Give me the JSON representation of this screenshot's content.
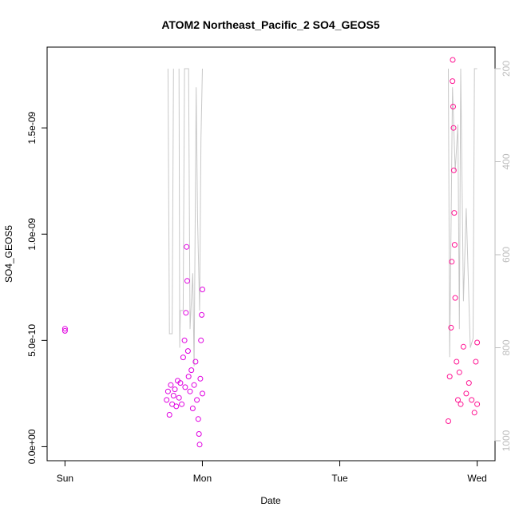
{
  "chart_data": {
    "type": "scatter",
    "title": "ATOM2 Northeast_Pacific_2 SO4_GEOS5",
    "xlabel": "Date",
    "ylabel": "SO4_GEOS5",
    "x_ticks": [
      "Sun",
      "Mon",
      "Tue",
      "Wed"
    ],
    "xlim_days": [
      -0.13,
      3.13
    ],
    "y_ticks": [
      "0.0e+00",
      "5.0e-10",
      "1.0e-09",
      "1.5e-09"
    ],
    "y_tick_values": [
      0,
      5e-10,
      1e-09,
      1.5e-09
    ],
    "ylim": [
      -6.6e-11,
      1.88e-09
    ],
    "right_axis": {
      "ticks": [
        "200",
        "400",
        "600",
        "800",
        "1000"
      ],
      "tick_values": [
        200,
        400,
        600,
        800,
        1000
      ],
      "reversed": true,
      "color": "#bdbdbd"
    },
    "series": [
      {
        "marker": "open-circle",
        "colors": [
          "#e000e0",
          "#ff1493"
        ],
        "points": [
          [
            0.0,
            5.45e-10
          ],
          [
            0.0,
            5.55e-10
          ],
          [
            0.74,
            2.2e-10
          ],
          [
            0.75,
            2.6e-10
          ],
          [
            0.76,
            1.5e-10
          ],
          [
            0.77,
            2.9e-10
          ],
          [
            0.78,
            2e-10
          ],
          [
            0.79,
            2.4e-10
          ],
          [
            0.8,
            2.7e-10
          ],
          [
            0.81,
            1.9e-10
          ],
          [
            0.82,
            3.1e-10
          ],
          [
            0.83,
            2.3e-10
          ],
          [
            0.84,
            3e-10
          ],
          [
            0.85,
            2e-10
          ],
          [
            0.86,
            4.2e-10
          ],
          [
            0.87,
            5e-10
          ],
          [
            0.875,
            2.8e-10
          ],
          [
            0.88,
            6.3e-10
          ],
          [
            0.885,
            9.4e-10
          ],
          [
            0.89,
            7.8e-10
          ],
          [
            0.895,
            4.5e-10
          ],
          [
            0.9,
            3.3e-10
          ],
          [
            0.91,
            2.6e-10
          ],
          [
            0.92,
            3.6e-10
          ],
          [
            0.93,
            1.8e-10
          ],
          [
            0.94,
            2.9e-10
          ],
          [
            0.95,
            4e-10
          ],
          [
            0.96,
            2.2e-10
          ],
          [
            0.97,
            1.3e-10
          ],
          [
            0.975,
            6e-11
          ],
          [
            0.98,
            1e-11
          ],
          [
            0.985,
            3.2e-10
          ],
          [
            0.99,
            5e-10
          ],
          [
            0.995,
            6.2e-10
          ],
          [
            1.0,
            7.4e-10
          ],
          [
            1.0,
            2.5e-10
          ],
          [
            2.79,
            1.2e-10
          ],
          [
            2.8,
            3.3e-10
          ],
          [
            2.81,
            5.6e-10
          ],
          [
            2.815,
            8.7e-10
          ],
          [
            2.82,
            1.72e-09
          ],
          [
            2.822,
            1.82e-09
          ],
          [
            2.825,
            1.6e-09
          ],
          [
            2.828,
            1.5e-09
          ],
          [
            2.83,
            1.3e-09
          ],
          [
            2.833,
            1.1e-09
          ],
          [
            2.836,
            9.5e-10
          ],
          [
            2.84,
            7e-10
          ],
          [
            2.85,
            4e-10
          ],
          [
            2.86,
            2.2e-10
          ],
          [
            2.87,
            3.5e-10
          ],
          [
            2.88,
            2e-10
          ],
          [
            2.9,
            4.7e-10
          ],
          [
            2.92,
            2.5e-10
          ],
          [
            2.94,
            3e-10
          ],
          [
            2.96,
            2.2e-10
          ],
          [
            2.98,
            1.6e-10
          ],
          [
            2.99,
            4e-10
          ],
          [
            3.0,
            4.9e-10
          ],
          [
            3.0,
            2e-10
          ]
        ]
      }
    ],
    "lines": [
      {
        "color": "#c8c8c8",
        "axis": "right",
        "segments": [
          [
            [
              0.75,
              200
            ],
            [
              0.76,
              770
            ],
            [
              0.78,
              770
            ],
            [
              0.79,
              200
            ]
          ],
          [
            [
              0.83,
              200
            ],
            [
              0.835,
              800
            ],
            [
              0.84,
              720
            ],
            [
              0.86,
              720
            ],
            [
              0.87,
              200
            ],
            [
              0.88,
              200
            ],
            [
              0.9,
              200
            ],
            [
              0.91,
              760
            ],
            [
              0.93,
              640
            ],
            [
              0.94,
              840
            ],
            [
              0.955,
              240
            ],
            [
              0.965,
              520
            ],
            [
              0.98,
              720
            ],
            [
              0.99,
              350
            ],
            [
              1.0,
              200
            ]
          ],
          [
            [
              2.79,
              200
            ],
            [
              2.8,
              820
            ],
            [
              2.82,
              240
            ],
            [
              2.84,
              420
            ],
            [
              2.86,
              320
            ],
            [
              2.87,
              760
            ],
            [
              2.88,
              200
            ],
            [
              2.9,
              700
            ],
            [
              2.92,
              500
            ],
            [
              2.95,
              800
            ],
            [
              2.97,
              780
            ],
            [
              2.98,
              200
            ],
            [
              3.0,
              200
            ]
          ]
        ]
      }
    ]
  }
}
